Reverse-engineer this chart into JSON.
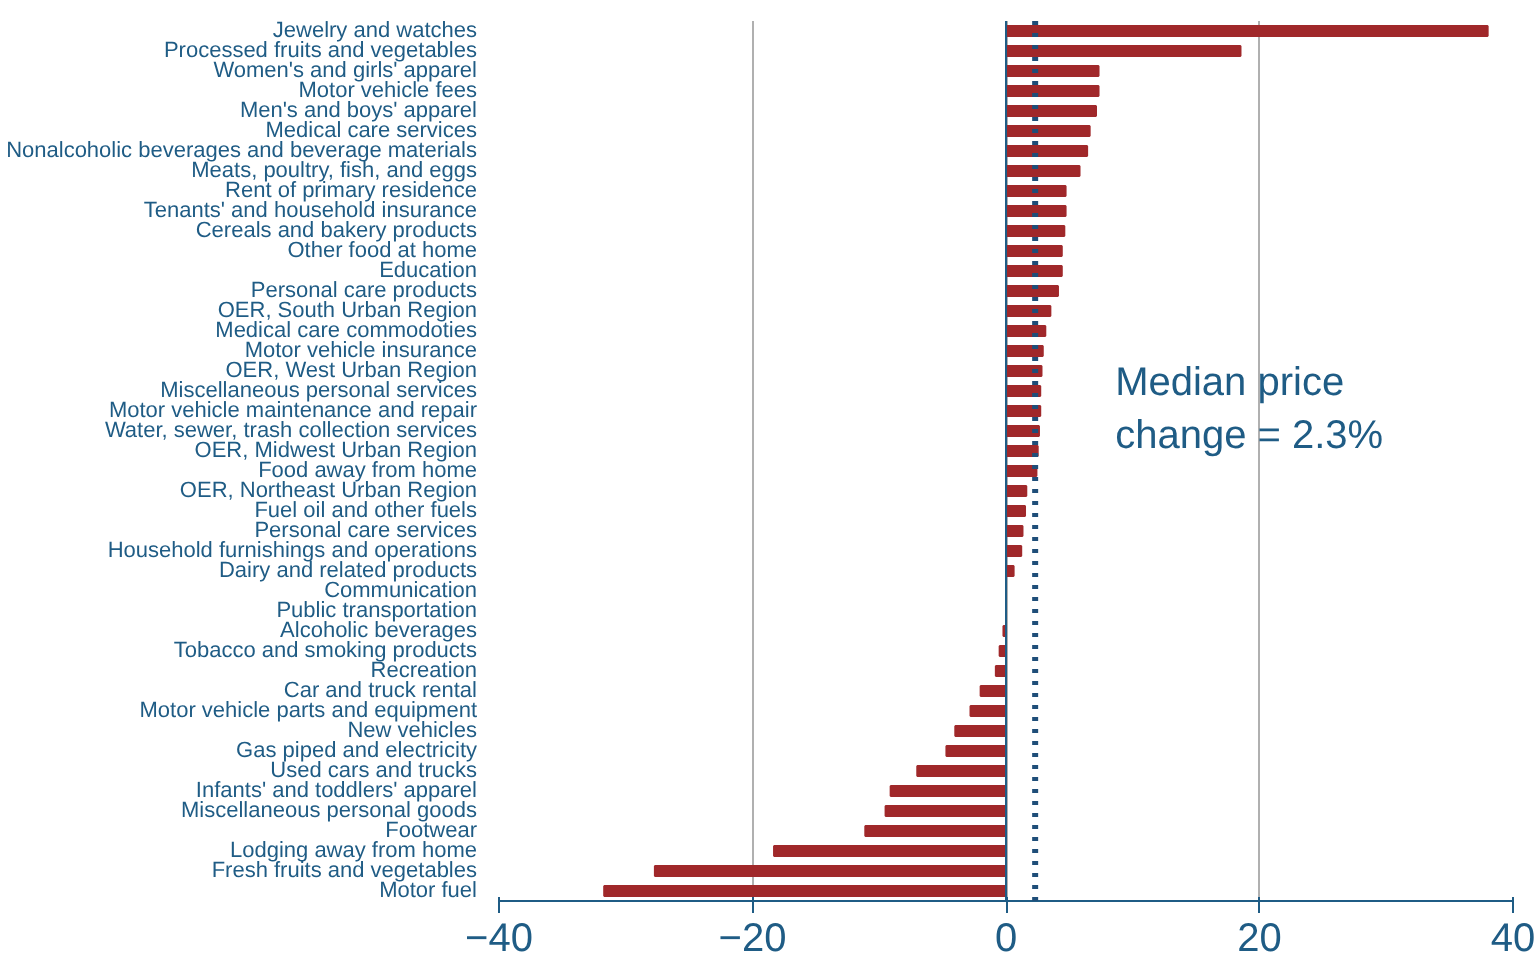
{
  "chart_data": {
    "type": "bar",
    "orientation": "horizontal",
    "categories": [
      "Jewelry and watches",
      "Processed fruits and vegetables",
      "Women's and girls' apparel",
      "Motor vehicle fees",
      "Men's and boys' apparel",
      "Medical care services",
      "Nonalcoholic beverages and beverage materials",
      "Meats, poultry, fish, and eggs",
      "Rent of primary residence",
      "Tenants' and household insurance",
      "Cereals and bakery products",
      "Other food at home",
      "Education",
      "Personal care products",
      "OER, South Urban Region",
      "Medical care commodoties",
      "Motor vehicle insurance",
      "OER, West Urban Region",
      "Miscellaneous personal services",
      "Motor vehicle maintenance and repair",
      "Water, sewer, trash collection services",
      "OER, Midwest Urban Region",
      "Food away from home",
      "OER, Northeast Urban Region",
      "Fuel oil and other fuels",
      "Personal care services",
      "Household furnishings and operations",
      "Dairy and related products",
      "Communication",
      "Public transportation",
      "Alcoholic beverages",
      "Tobacco and smoking products",
      "Recreation",
      "Car and truck rental",
      "Motor vehicle parts and equipment",
      "New vehicles",
      "Gas piped and electricity",
      "Used cars and trucks",
      "Infants' and toddlers' apparel",
      "Miscellaneous personal goods",
      "Footwear",
      "Lodging away from home",
      "Fresh fruits and vegetables",
      "Motor fuel"
    ],
    "values": [
      38.0,
      18.5,
      7.3,
      7.3,
      7.1,
      6.6,
      6.4,
      5.8,
      4.7,
      4.7,
      4.6,
      4.4,
      4.4,
      4.1,
      3.5,
      3.1,
      2.9,
      2.8,
      2.7,
      2.7,
      2.6,
      2.5,
      2.4,
      1.6,
      1.5,
      1.3,
      1.2,
      0.6,
      null,
      null,
      -0.2,
      -0.5,
      -0.8,
      -2.0,
      -2.8,
      -4.0,
      -4.7,
      -7.0,
      -9.1,
      -9.5,
      -11.1,
      -18.3,
      -27.7,
      -31.7
    ],
    "color": "#a0282a",
    "xlim": [
      -40,
      40
    ],
    "xticks": [
      -40,
      -20,
      0,
      20,
      40
    ],
    "grid": "x",
    "ref_lines": [
      {
        "axis": "x",
        "value": 0,
        "color": "#1f5c85",
        "line_style": "solid"
      },
      {
        "axis": "x",
        "value": 2.3,
        "color": "#1f4e79",
        "line_style": "dotted",
        "label": "Median price\nchange = 2.3%"
      }
    ]
  }
}
